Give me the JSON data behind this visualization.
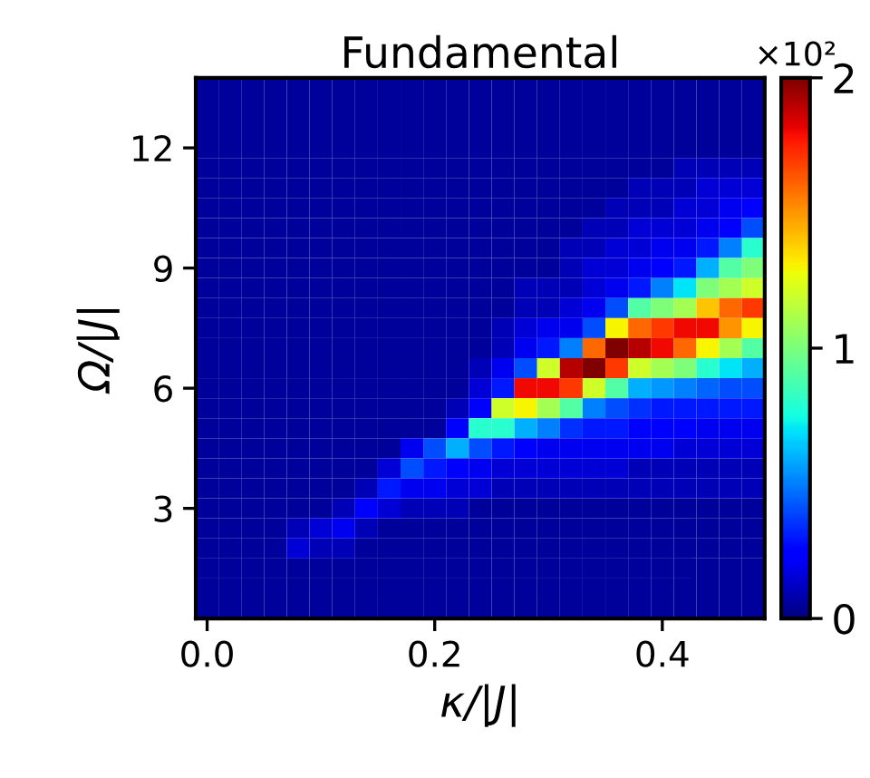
{
  "chart_data": {
    "type": "heatmap",
    "title": "Fundamental",
    "xlabel": "κ/|J|",
    "ylabel": "Ω/|J|",
    "clabel": "×10²",
    "categories": [
      "0.0",
      null,
      null,
      null,
      null,
      null,
      null,
      null,
      null,
      null,
      "0.2",
      null,
      null,
      null,
      null,
      null,
      null,
      null,
      null,
      null,
      "0.4",
      null,
      null,
      null,
      null
    ],
    "y_categories": [
      null,
      null,
      null,
      "12",
      null,
      null,
      null,
      null,
      null,
      "9",
      null,
      null,
      null,
      null,
      null,
      "6",
      null,
      null,
      null,
      null,
      null,
      "3",
      null,
      null,
      null,
      null,
      null
    ],
    "clim": [
      0,
      2
    ],
    "cticks": [
      0,
      1,
      2
    ],
    "cells": [
      [
        0.05,
        0.05,
        0.05,
        0.05,
        0.05,
        0.05,
        0.05,
        0.05,
        0.05,
        0.05,
        0.05,
        0.05,
        0.05,
        0.05,
        0.05,
        0.05,
        0.05,
        0.05,
        0.05,
        0.05,
        0.05,
        0.05,
        0.05,
        0.05,
        0.05
      ],
      [
        0.05,
        0.05,
        0.05,
        0.05,
        0.05,
        0.05,
        0.05,
        0.05,
        0.05,
        0.05,
        0.05,
        0.05,
        0.05,
        0.05,
        0.05,
        0.05,
        0.05,
        0.05,
        0.05,
        0.05,
        0.05,
        0.05,
        0.05,
        0.05,
        0.05
      ],
      [
        0.05,
        0.05,
        0.05,
        0.05,
        0.05,
        0.05,
        0.05,
        0.05,
        0.05,
        0.05,
        0.05,
        0.05,
        0.05,
        0.05,
        0.05,
        0.05,
        0.05,
        0.05,
        0.05,
        0.05,
        0.05,
        0.05,
        0.05,
        0.05,
        0.05
      ],
      [
        0.05,
        0.05,
        0.05,
        0.05,
        0.05,
        0.05,
        0.05,
        0.05,
        0.05,
        0.05,
        0.05,
        0.05,
        0.05,
        0.05,
        0.05,
        0.05,
        0.05,
        0.05,
        0.05,
        0.05,
        0.05,
        0.05,
        0.05,
        0.05,
        0.05
      ],
      [
        0.05,
        0.05,
        0.05,
        0.05,
        0.05,
        0.05,
        0.05,
        0.05,
        0.05,
        0.05,
        0.05,
        0.05,
        0.05,
        0.05,
        0.05,
        0.05,
        0.05,
        0.05,
        0.05,
        0.05,
        0.05,
        0.1,
        0.1,
        0.1,
        0.1
      ],
      [
        0.05,
        0.05,
        0.05,
        0.05,
        0.05,
        0.05,
        0.05,
        0.05,
        0.05,
        0.05,
        0.05,
        0.05,
        0.05,
        0.05,
        0.05,
        0.05,
        0.05,
        0.05,
        0.05,
        0.1,
        0.1,
        0.1,
        0.15,
        0.15,
        0.15
      ],
      [
        0.05,
        0.05,
        0.05,
        0.05,
        0.05,
        0.05,
        0.05,
        0.05,
        0.05,
        0.05,
        0.05,
        0.05,
        0.05,
        0.05,
        0.05,
        0.05,
        0.05,
        0.05,
        0.1,
        0.1,
        0.1,
        0.15,
        0.15,
        0.2,
        0.25
      ],
      [
        0.05,
        0.05,
        0.05,
        0.05,
        0.05,
        0.05,
        0.05,
        0.05,
        0.05,
        0.05,
        0.05,
        0.05,
        0.05,
        0.05,
        0.05,
        0.05,
        0.05,
        0.1,
        0.1,
        0.15,
        0.15,
        0.15,
        0.2,
        0.25,
        0.4
      ],
      [
        0.05,
        0.05,
        0.05,
        0.05,
        0.05,
        0.05,
        0.05,
        0.05,
        0.05,
        0.05,
        0.05,
        0.05,
        0.05,
        0.05,
        0.05,
        0.05,
        0.1,
        0.1,
        0.15,
        0.15,
        0.2,
        0.2,
        0.3,
        0.5,
        0.8
      ],
      [
        0.05,
        0.05,
        0.05,
        0.05,
        0.05,
        0.05,
        0.05,
        0.05,
        0.05,
        0.05,
        0.05,
        0.05,
        0.05,
        0.05,
        0.05,
        0.05,
        0.1,
        0.15,
        0.15,
        0.2,
        0.25,
        0.3,
        0.6,
        0.9,
        1.0
      ],
      [
        0.05,
        0.05,
        0.05,
        0.05,
        0.05,
        0.05,
        0.05,
        0.05,
        0.05,
        0.05,
        0.05,
        0.05,
        0.05,
        0.05,
        0.1,
        0.1,
        0.1,
        0.15,
        0.2,
        0.3,
        0.5,
        0.7,
        1.0,
        1.1,
        1.2
      ],
      [
        0.05,
        0.05,
        0.05,
        0.05,
        0.05,
        0.05,
        0.05,
        0.05,
        0.05,
        0.05,
        0.05,
        0.05,
        0.05,
        0.05,
        0.1,
        0.1,
        0.15,
        0.2,
        0.4,
        0.9,
        1.0,
        1.1,
        1.4,
        1.6,
        1.7
      ],
      [
        0.05,
        0.05,
        0.05,
        0.05,
        0.05,
        0.05,
        0.05,
        0.05,
        0.05,
        0.05,
        0.05,
        0.05,
        0.05,
        0.1,
        0.15,
        0.2,
        0.2,
        0.4,
        1.3,
        1.6,
        1.7,
        1.8,
        1.8,
        1.5,
        1.3
      ],
      [
        0.05,
        0.05,
        0.05,
        0.05,
        0.05,
        0.05,
        0.05,
        0.05,
        0.05,
        0.05,
        0.05,
        0.05,
        0.05,
        0.1,
        0.2,
        0.3,
        0.5,
        1.6,
        2.0,
        1.9,
        1.8,
        1.6,
        1.3,
        1.1,
        0.9
      ],
      [
        0.05,
        0.05,
        0.05,
        0.05,
        0.05,
        0.05,
        0.05,
        0.05,
        0.05,
        0.05,
        0.05,
        0.05,
        0.1,
        0.2,
        0.4,
        1.2,
        1.9,
        2.0,
        1.7,
        1.2,
        1.1,
        1.0,
        0.8,
        0.7,
        0.6
      ],
      [
        0.05,
        0.05,
        0.05,
        0.05,
        0.05,
        0.05,
        0.05,
        0.05,
        0.05,
        0.05,
        0.05,
        0.05,
        0.15,
        0.3,
        1.8,
        1.8,
        1.7,
        1.2,
        0.9,
        0.6,
        0.55,
        0.5,
        0.45,
        0.4,
        0.4
      ],
      [
        0.05,
        0.05,
        0.05,
        0.05,
        0.05,
        0.05,
        0.05,
        0.05,
        0.05,
        0.05,
        0.05,
        0.1,
        0.25,
        1.2,
        1.3,
        1.1,
        0.9,
        0.5,
        0.4,
        0.35,
        0.3,
        0.3,
        0.3,
        0.3,
        0.3
      ],
      [
        0.05,
        0.05,
        0.05,
        0.05,
        0.05,
        0.05,
        0.05,
        0.05,
        0.05,
        0.05,
        0.05,
        0.25,
        0.8,
        0.8,
        0.6,
        0.5,
        0.35,
        0.3,
        0.3,
        0.25,
        0.25,
        0.25,
        0.2,
        0.2,
        0.2
      ],
      [
        0.05,
        0.05,
        0.05,
        0.05,
        0.05,
        0.05,
        0.05,
        0.05,
        0.05,
        0.2,
        0.4,
        0.6,
        0.4,
        0.3,
        0.25,
        0.2,
        0.2,
        0.2,
        0.2,
        0.2,
        0.2,
        0.15,
        0.15,
        0.15,
        0.15
      ],
      [
        0.05,
        0.05,
        0.05,
        0.05,
        0.05,
        0.05,
        0.05,
        0.05,
        0.15,
        0.4,
        0.3,
        0.25,
        0.2,
        0.15,
        0.15,
        0.15,
        0.15,
        0.15,
        0.15,
        0.1,
        0.1,
        0.1,
        0.1,
        0.1,
        0.1
      ],
      [
        0.05,
        0.05,
        0.05,
        0.05,
        0.05,
        0.05,
        0.05,
        0.1,
        0.3,
        0.2,
        0.2,
        0.15,
        0.15,
        0.1,
        0.1,
        0.1,
        0.1,
        0.1,
        0.1,
        0.1,
        0.1,
        0.1,
        0.1,
        0.1,
        0.1
      ],
      [
        0.05,
        0.05,
        0.05,
        0.05,
        0.05,
        0.05,
        0.1,
        0.25,
        0.15,
        0.1,
        0.1,
        0.1,
        0.05,
        0.05,
        0.05,
        0.05,
        0.05,
        0.05,
        0.05,
        0.05,
        0.05,
        0.05,
        0.05,
        0.05,
        0.05
      ],
      [
        0.05,
        0.05,
        0.05,
        0.05,
        0.1,
        0.15,
        0.2,
        0.1,
        0.05,
        0.05,
        0.05,
        0.05,
        0.05,
        0.05,
        0.05,
        0.05,
        0.05,
        0.05,
        0.05,
        0.05,
        0.05,
        0.05,
        0.05,
        0.05,
        0.05
      ],
      [
        0.05,
        0.05,
        0.05,
        0.05,
        0.15,
        0.1,
        0.1,
        0.05,
        0.05,
        0.05,
        0.05,
        0.05,
        0.05,
        0.05,
        0.05,
        0.05,
        0.05,
        0.05,
        0.05,
        0.05,
        0.05,
        0.05,
        0.05,
        0.05,
        0.05
      ],
      [
        0.05,
        0.05,
        0.05,
        0.05,
        0.05,
        0.05,
        0.05,
        0.05,
        0.05,
        0.05,
        0.05,
        0.05,
        0.05,
        0.05,
        0.05,
        0.05,
        0.05,
        0.05,
        0.05,
        0.05,
        0.05,
        0.05,
        0.05,
        0.05,
        0.05
      ],
      [
        0.05,
        0.05,
        0.05,
        0.05,
        0.05,
        0.05,
        0.05,
        0.05,
        0.05,
        0.05,
        0.05,
        0.05,
        0.05,
        0.05,
        0.05,
        0.05,
        0.05,
        0.05,
        0.05,
        0.05,
        0.05,
        0.05,
        0.05,
        0.05,
        0.05
      ],
      [
        0.05,
        0.05,
        0.05,
        0.05,
        0.05,
        0.05,
        0.05,
        0.05,
        0.05,
        0.05,
        0.05,
        0.05,
        0.05,
        0.05,
        0.05,
        0.05,
        0.05,
        0.05,
        0.05,
        0.05,
        0.05,
        0.05,
        0.05,
        0.05,
        0.05
      ]
    ]
  }
}
